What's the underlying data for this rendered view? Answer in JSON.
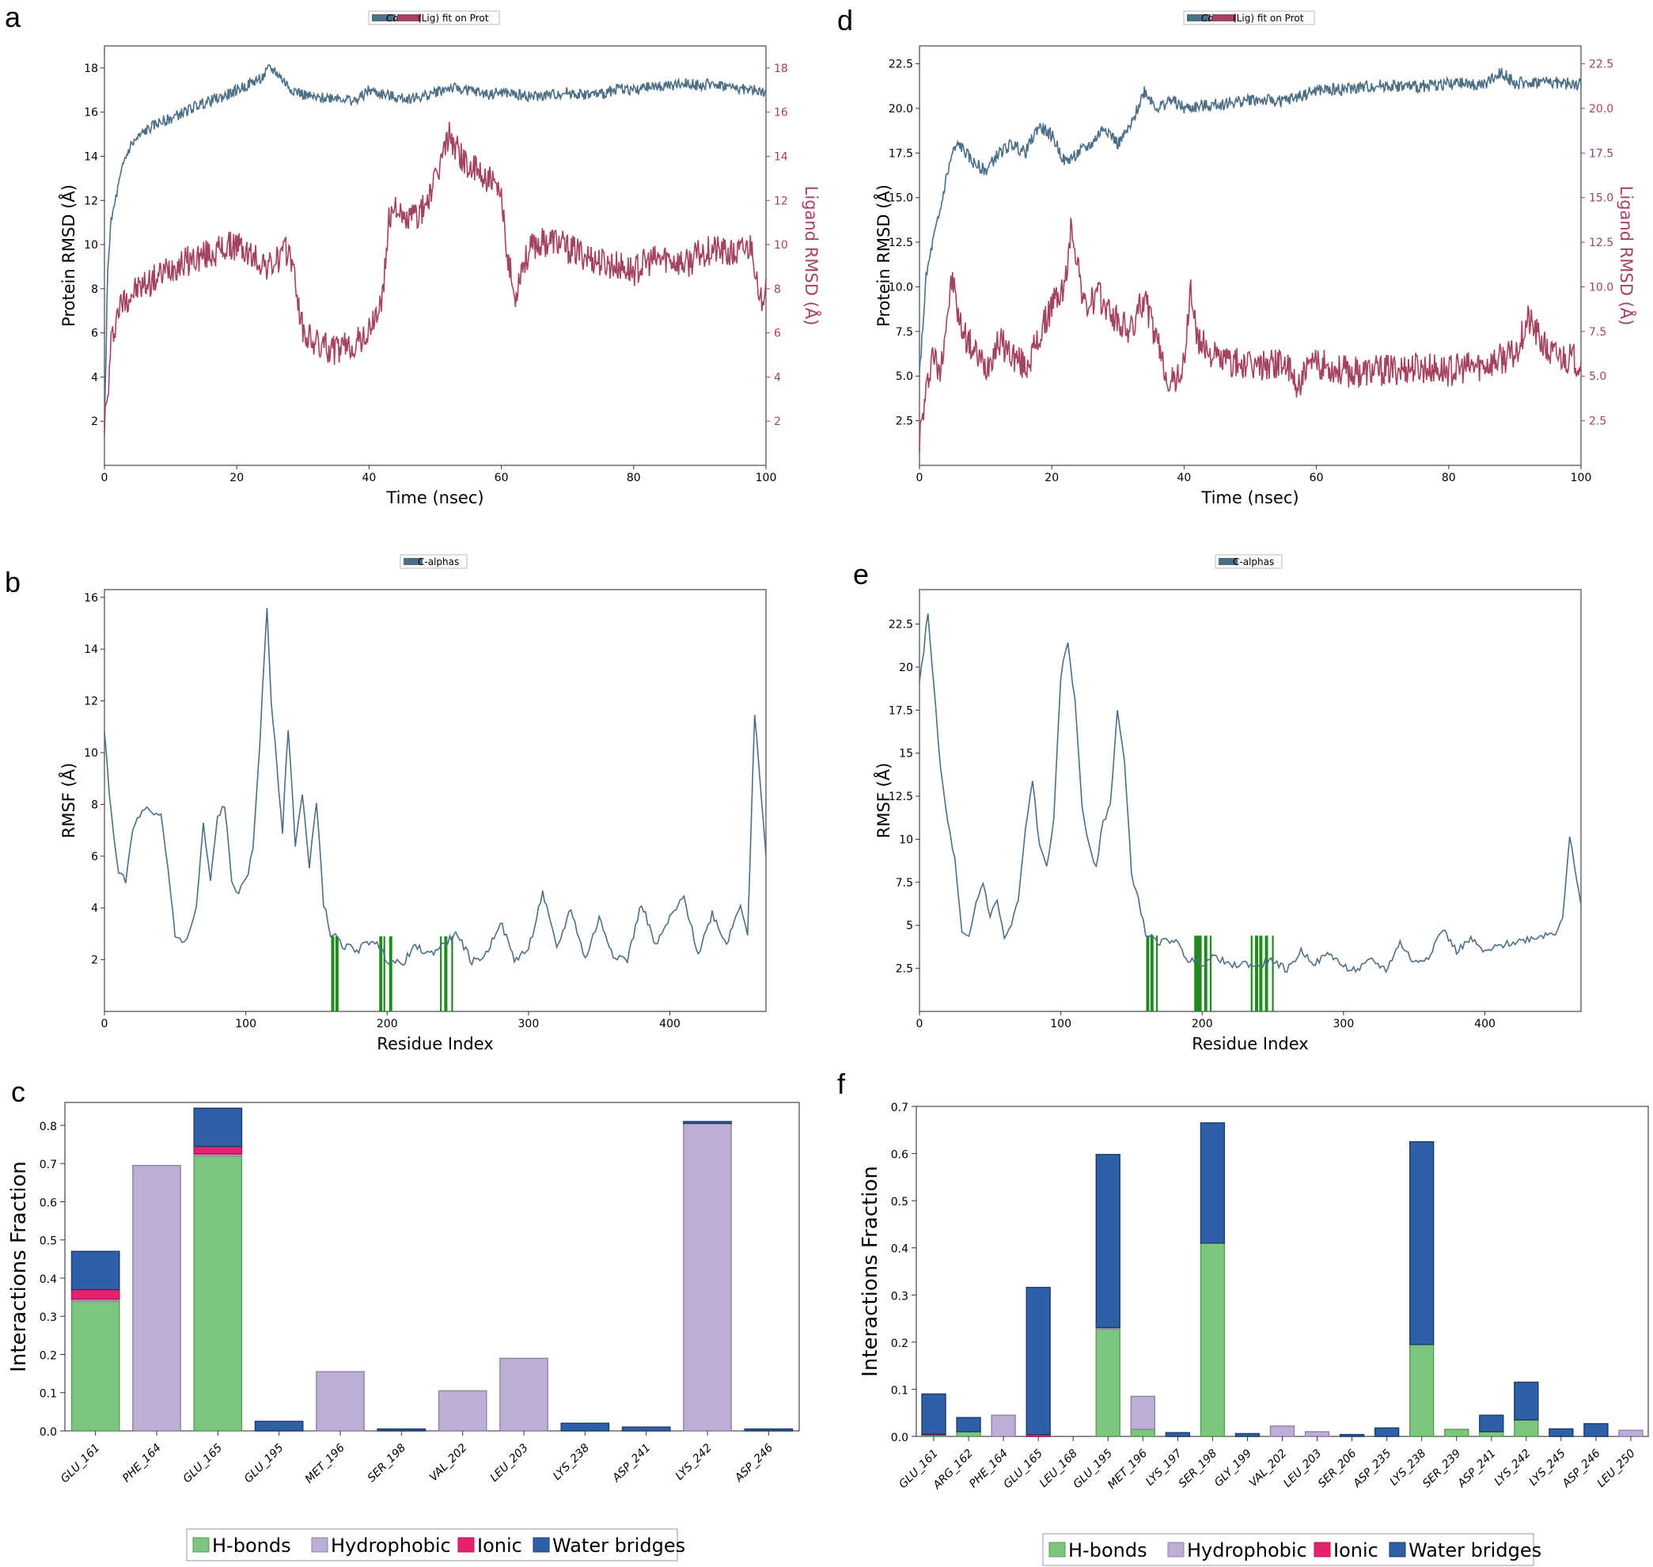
{
  "figure": {
    "colors": {
      "protein": "#4d6f86",
      "ligand": "#a3435f",
      "contact": "#1f8a1f",
      "hbond": "#7dc67e",
      "hydrophobic": "#bcaed6",
      "ionic": "#e4226e",
      "water": "#2f5fa6"
    }
  },
  "chart_data": [
    {
      "panel": "a",
      "type": "line",
      "legend": {
        "prefix": "Cα",
        "text": "(Lig) fit on Prot"
      },
      "xlabel": "Time (nsec)",
      "ylabel": "Protein RMSD (Å)",
      "ylabel2": "Ligand RMSD (Å)",
      "xlim": [
        0,
        100
      ],
      "ylim": [
        0,
        19
      ],
      "xticks": [
        0,
        20,
        40,
        60,
        80,
        100
      ],
      "yticks": [
        2,
        4,
        6,
        8,
        10,
        12,
        14,
        16,
        18
      ],
      "series": [
        {
          "name": "Cα",
          "axis": "left",
          "x": [
            0,
            0.5,
            1,
            2,
            3,
            4,
            5,
            6,
            8,
            10,
            12,
            14,
            16,
            18,
            20,
            22,
            24,
            25,
            26,
            28,
            30,
            32,
            35,
            38,
            40,
            42,
            45,
            48,
            50,
            52,
            55,
            58,
            60,
            62,
            65,
            68,
            70,
            72,
            75,
            78,
            80,
            82,
            85,
            88,
            90,
            92,
            95,
            98,
            100
          ],
          "y": [
            1.5,
            9,
            11,
            12.5,
            13.8,
            14.5,
            14.8,
            15.1,
            15.5,
            15.7,
            16.0,
            16.3,
            16.5,
            16.7,
            17.0,
            17.3,
            17.6,
            18.0,
            17.8,
            17.1,
            16.8,
            16.6,
            16.7,
            16.5,
            17.0,
            16.8,
            16.6,
            16.7,
            16.9,
            17.1,
            17.0,
            16.8,
            16.9,
            16.8,
            16.7,
            16.8,
            16.9,
            16.8,
            16.8,
            17.1,
            17.0,
            17.1,
            17.2,
            17.3,
            17.2,
            17.3,
            17.1,
            17.0,
            16.9
          ]
        },
        {
          "name": "Lig",
          "axis": "right",
          "x": [
            0,
            0.5,
            1,
            2,
            3,
            5,
            8,
            10,
            12,
            15,
            18,
            20,
            22,
            25,
            28,
            29,
            30,
            32,
            35,
            38,
            40,
            42,
            43,
            44,
            45,
            48,
            50,
            52,
            53,
            55,
            58,
            60,
            61,
            62,
            63,
            65,
            68,
            70,
            72,
            75,
            78,
            80,
            82,
            85,
            88,
            90,
            92,
            95,
            98,
            99,
            100
          ],
          "y": [
            2,
            3,
            5.5,
            7,
            7.5,
            8,
            8.5,
            9,
            9.2,
            9.5,
            9.8,
            10,
            9.5,
            9,
            9.8,
            8,
            6,
            5.5,
            5.2,
            5.5,
            6,
            7.5,
            11,
            12,
            11,
            11.5,
            12.8,
            15,
            14.5,
            13.5,
            13,
            12,
            9.5,
            7.5,
            9,
            10,
            10.2,
            9.8,
            9.6,
            9.2,
            9.0,
            8.8,
            9.2,
            9.4,
            9.1,
            9.6,
            9.8,
            9.5,
            10,
            7,
            8.5
          ]
        }
      ]
    },
    {
      "panel": "b",
      "type": "line",
      "legend": {
        "text": "C-alphas"
      },
      "xlabel": "Residue Index",
      "ylabel": "RMSF (Å)",
      "xlim": [
        0,
        468
      ],
      "ylim": [
        0,
        16.3
      ],
      "xticks": [
        0,
        100,
        200,
        300,
        400
      ],
      "yticks": [
        2,
        4,
        6,
        8,
        10,
        12,
        14,
        16
      ],
      "series": [
        {
          "name": "C-alphas",
          "x": [
            0,
            5,
            10,
            15,
            20,
            25,
            30,
            35,
            40,
            45,
            50,
            55,
            60,
            65,
            70,
            75,
            80,
            85,
            90,
            95,
            100,
            105,
            110,
            115,
            118,
            122,
            126,
            130,
            135,
            140,
            145,
            150,
            155,
            160,
            165,
            170,
            180,
            190,
            200,
            210,
            220,
            230,
            240,
            250,
            260,
            270,
            280,
            290,
            300,
            310,
            320,
            330,
            340,
            350,
            360,
            370,
            380,
            390,
            400,
            410,
            420,
            430,
            440,
            450,
            455,
            460,
            465,
            468
          ],
          "y": [
            10.7,
            7.5,
            5.4,
            5.0,
            7.0,
            7.6,
            7.8,
            7.5,
            7.6,
            5.5,
            3.0,
            2.6,
            3.0,
            4.0,
            7.2,
            5.0,
            7.5,
            8.0,
            5.0,
            4.6,
            5.0,
            6.2,
            10.5,
            15.6,
            12,
            9.5,
            7.0,
            11,
            6.5,
            8.4,
            5.5,
            8.2,
            4.2,
            3.0,
            2.8,
            2.5,
            2.4,
            2.8,
            2.0,
            1.8,
            2.5,
            2.2,
            2.6,
            3.0,
            1.9,
            2.2,
            3.5,
            2.0,
            2.4,
            4.6,
            2.4,
            4.0,
            2.0,
            3.6,
            2.2,
            2.0,
            4.2,
            2.5,
            3.6,
            4.4,
            2.2,
            3.8,
            2.6,
            4.2,
            3.0,
            11.5,
            8.0,
            6.0
          ]
        }
      ],
      "contacts": [
        161,
        162,
        164,
        165,
        195,
        196,
        198,
        202,
        203,
        238,
        241,
        242,
        246
      ]
    },
    {
      "panel": "c",
      "type": "bar",
      "ylabel": "Interactions Fraction",
      "ylim": [
        0,
        0.86
      ],
      "yticks": [
        0.0,
        0.1,
        0.2,
        0.3,
        0.4,
        0.5,
        0.6,
        0.7,
        0.8
      ],
      "categories": [
        "GLU_161",
        "PHE_164",
        "GLU_165",
        "GLU_195",
        "MET_196",
        "SER_198",
        "VAL_202",
        "LEU_203",
        "LYS_238",
        "ASP_241",
        "LYS_242",
        "ASP_246"
      ],
      "series": [
        {
          "name": "H-bonds",
          "values": [
            0.34,
            0,
            0.72,
            0,
            0,
            0,
            0,
            0,
            0,
            0,
            0,
            0
          ]
        },
        {
          "name": "Hydrophobic",
          "values": [
            0.005,
            0.695,
            0.005,
            0,
            0.155,
            0,
            0.105,
            0.19,
            0,
            0,
            0.805,
            0
          ]
        },
        {
          "name": "Ionic",
          "values": [
            0.025,
            0,
            0.02,
            0,
            0,
            0,
            0,
            0,
            0,
            0,
            0,
            0
          ]
        },
        {
          "name": "Water bridges",
          "values": [
            0.1,
            0,
            0.1,
            0.025,
            0,
            0.005,
            0,
            0,
            0.02,
            0.01,
            0.005,
            0.005
          ]
        }
      ]
    },
    {
      "panel": "d",
      "type": "line",
      "legend": {
        "prefix": "Cα",
        "text": "(Lig) fit on Prot"
      },
      "xlabel": "Time (nsec)",
      "ylabel": "Protein RMSD (Å)",
      "ylabel2": "Ligand RMSD (Å)",
      "xlim": [
        0,
        100
      ],
      "ylim": [
        0,
        23.5
      ],
      "xticks": [
        0,
        20,
        40,
        60,
        80,
        100
      ],
      "yticks": [
        2.5,
        5.0,
        7.5,
        10.0,
        12.5,
        15.0,
        17.5,
        20.0,
        22.5
      ],
      "series": [
        {
          "name": "Cα",
          "axis": "left",
          "x": [
            0,
            1,
            2,
            3,
            4,
            5,
            6,
            8,
            10,
            12,
            14,
            16,
            18,
            20,
            22,
            24,
            26,
            28,
            30,
            32,
            34,
            36,
            38,
            40,
            45,
            50,
            55,
            60,
            65,
            70,
            75,
            80,
            85,
            88,
            90,
            95,
            100
          ],
          "y": [
            5,
            10.5,
            12.5,
            14,
            16,
            17.5,
            18,
            17,
            16.5,
            17.5,
            18,
            17.5,
            19,
            18.5,
            17,
            17.5,
            18,
            19,
            18,
            19,
            21,
            20,
            20.5,
            20,
            20.2,
            20.5,
            20.4,
            21,
            21.1,
            21.3,
            21.2,
            21.4,
            21.3,
            22,
            21.4,
            21.5,
            21.3
          ]
        },
        {
          "name": "Lig",
          "axis": "right",
          "x": [
            0,
            1,
            2,
            3,
            4,
            5,
            6,
            8,
            10,
            12,
            14,
            16,
            18,
            20,
            22,
            23,
            25,
            27,
            30,
            32,
            34,
            35,
            37,
            38,
            40,
            41,
            42,
            45,
            50,
            55,
            57,
            60,
            62,
            65,
            70,
            75,
            80,
            85,
            90,
            92,
            95,
            100
          ],
          "y": [
            1.5,
            4,
            6.5,
            5,
            8,
            10.5,
            8,
            6.5,
            5.5,
            7,
            6.2,
            5.5,
            7,
            9,
            10,
            13.5,
            8.8,
            9.5,
            8,
            7.5,
            9.5,
            8,
            5.5,
            4.5,
            5.5,
            10,
            7,
            6,
            5.5,
            5.8,
            4.5,
            5.8,
            5.5,
            5.2,
            5.3,
            5.5,
            5.3,
            5.6,
            6.2,
            8.2,
            6.3,
            5.8
          ]
        }
      ]
    },
    {
      "panel": "e",
      "type": "line",
      "legend": {
        "text": "C-alphas"
      },
      "xlabel": "Residue Index",
      "ylabel": "RMSF (Å)",
      "xlim": [
        0,
        468
      ],
      "ylim": [
        0,
        24.5
      ],
      "xticks": [
        0,
        100,
        200,
        300,
        400
      ],
      "yticks": [
        2.5,
        5.0,
        7.5,
        10.0,
        12.5,
        15.0,
        17.5,
        20.0,
        22.5
      ],
      "series": [
        {
          "name": "C-alphas",
          "x": [
            0,
            3,
            6,
            10,
            15,
            20,
            25,
            30,
            35,
            40,
            45,
            50,
            55,
            60,
            65,
            70,
            75,
            80,
            85,
            90,
            95,
            100,
            105,
            110,
            115,
            120,
            125,
            130,
            135,
            140,
            145,
            150,
            155,
            160,
            170,
            180,
            190,
            200,
            210,
            220,
            230,
            240,
            250,
            260,
            270,
            280,
            290,
            300,
            310,
            320,
            330,
            340,
            350,
            360,
            370,
            380,
            390,
            400,
            410,
            420,
            430,
            440,
            450,
            455,
            460,
            465,
            468
          ],
          "y": [
            19,
            21,
            23.2,
            19,
            14,
            11,
            8.8,
            4.5,
            4.2,
            6.3,
            7.5,
            5.5,
            6.5,
            4.2,
            5,
            6.5,
            10.5,
            13.5,
            9.5,
            8.5,
            11,
            19.5,
            21.5,
            18,
            12,
            9.5,
            8.5,
            11,
            12,
            17.5,
            14.5,
            8,
            6.5,
            4.5,
            4,
            4.2,
            3.0,
            2.8,
            3.2,
            2.6,
            2.8,
            2.6,
            3.0,
            2.4,
            3.5,
            2.8,
            3.4,
            2.6,
            2.4,
            3.0,
            2.4,
            4.0,
            2.8,
            3.2,
            4.8,
            3.5,
            4.2,
            3.4,
            3.8,
            4.0,
            4.2,
            4.4,
            4.6,
            5.5,
            10.2,
            7.5,
            6.2
          ]
        }
      ],
      "contacts": [
        161,
        162,
        164,
        165,
        168,
        195,
        196,
        197,
        198,
        199,
        202,
        203,
        206,
        235,
        238,
        239,
        241,
        242,
        245,
        246,
        250
      ]
    },
    {
      "panel": "f",
      "type": "bar",
      "ylabel": "Interactions Fraction",
      "ylim": [
        0,
        0.7
      ],
      "yticks": [
        0.0,
        0.1,
        0.2,
        0.3,
        0.4,
        0.5,
        0.6,
        0.7
      ],
      "categories": [
        "GLU_161",
        "ARG_162",
        "PHE_164",
        "GLU_165",
        "LEU_168",
        "GLU_195",
        "MET_196",
        "LYS_197",
        "SER_198",
        "GLY_199",
        "VAL_202",
        "LEU_203",
        "SER_206",
        "ASP_235",
        "LYS_238",
        "SER_239",
        "ASP_241",
        "LYS_242",
        "LYS_245",
        "ASP_246",
        "LEU_250"
      ],
      "series": [
        {
          "name": "H-bonds",
          "values": [
            0.003,
            0.01,
            0,
            0,
            0,
            0.228,
            0.015,
            0,
            0.41,
            0,
            0,
            0,
            0,
            0,
            0.195,
            0.015,
            0.01,
            0.035,
            0,
            0,
            0
          ]
        },
        {
          "name": "Hydrophobic",
          "values": [
            0,
            0,
            0.045,
            0,
            0,
            0.003,
            0.07,
            0,
            0,
            0,
            0.022,
            0.01,
            0,
            0,
            0,
            0,
            0,
            0,
            0,
            0,
            0.013
          ]
        },
        {
          "name": "Ionic",
          "values": [
            0.002,
            0,
            0,
            0.004,
            0,
            0,
            0,
            0,
            0,
            0,
            0,
            0,
            0,
            0,
            0,
            0,
            0,
            0,
            0,
            0,
            0
          ]
        },
        {
          "name": "Water bridges",
          "values": [
            0.085,
            0.03,
            0,
            0.312,
            0,
            0.367,
            0,
            0.008,
            0.255,
            0.006,
            0,
            0,
            0.004,
            0.018,
            0.43,
            0,
            0.035,
            0.08,
            0.016,
            0.027,
            0
          ]
        }
      ]
    }
  ],
  "panels": {
    "a": {
      "label": "a"
    },
    "b": {
      "label": "b"
    },
    "c": {
      "label": "c"
    },
    "d": {
      "label": "d"
    },
    "e": {
      "label": "e"
    },
    "f": {
      "label": "f"
    }
  },
  "legend_c": {
    "hbond": "H-bonds",
    "hydrophobic": "Hydrophobic",
    "ionic": "Ionic",
    "water": "Water bridges"
  }
}
